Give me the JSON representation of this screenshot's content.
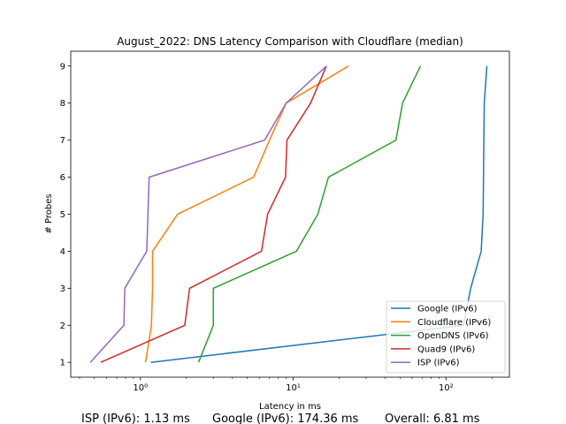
{
  "chart_data": {
    "type": "line",
    "title": "August_2022: DNS Latency Comparison with Cloudflare (median)",
    "xlabel": "Latency in ms",
    "ylabel": "# Probes",
    "xscale": "log",
    "xlim": [
      0.35,
      260
    ],
    "ylim": [
      0.6,
      9.4
    ],
    "xticks": [
      {
        "value": 1,
        "label": "10⁰"
      },
      {
        "value": 10,
        "label": "10¹"
      },
      {
        "value": 100,
        "label": "10²"
      }
    ],
    "yticks": [
      1,
      2,
      3,
      4,
      5,
      6,
      7,
      8,
      9
    ],
    "grid": false,
    "legend_position": "bottom-right",
    "series": [
      {
        "name": "Google (IPv6)",
        "color": "#1f77b4",
        "points": [
          [
            1.17,
            1
          ],
          [
            130,
            2
          ],
          [
            145,
            3
          ],
          [
            170,
            4
          ],
          [
            175,
            5
          ],
          [
            176,
            6
          ],
          [
            177,
            7
          ],
          [
            178,
            8
          ],
          [
            185,
            9
          ]
        ]
      },
      {
        "name": "Cloudflare (IPv6)",
        "color": "#ff7f0e",
        "points": [
          [
            1.08,
            1
          ],
          [
            1.18,
            2
          ],
          [
            1.2,
            3
          ],
          [
            1.2,
            4
          ],
          [
            1.75,
            5
          ],
          [
            5.5,
            6
          ],
          [
            7.0,
            7
          ],
          [
            9.0,
            8
          ],
          [
            23,
            9
          ]
        ]
      },
      {
        "name": "OpenDNS (IPv6)",
        "color": "#2ca02c",
        "points": [
          [
            2.4,
            1
          ],
          [
            3.0,
            2
          ],
          [
            3.0,
            3
          ],
          [
            10.5,
            4
          ],
          [
            14.5,
            5
          ],
          [
            17,
            6
          ],
          [
            47,
            7
          ],
          [
            52,
            8
          ],
          [
            68,
            9
          ]
        ]
      },
      {
        "name": "Quad9 (IPv6)",
        "color": "#d62728",
        "points": [
          [
            0.55,
            1
          ],
          [
            1.95,
            2
          ],
          [
            2.1,
            3
          ],
          [
            6.2,
            4
          ],
          [
            6.8,
            5
          ],
          [
            8.9,
            6
          ],
          [
            9.1,
            7
          ],
          [
            13,
            8
          ],
          [
            16.5,
            9
          ]
        ]
      },
      {
        "name": "ISP (IPv6)",
        "color": "#9467bd",
        "points": [
          [
            0.47,
            1
          ],
          [
            0.78,
            2
          ],
          [
            0.79,
            3
          ],
          [
            1.1,
            4
          ],
          [
            1.12,
            5
          ],
          [
            1.14,
            6
          ],
          [
            6.5,
            7
          ],
          [
            9.0,
            8
          ],
          [
            16.5,
            9
          ]
        ]
      }
    ]
  },
  "footer": {
    "isp": "ISP (IPv6): 1.13 ms",
    "google": "Google (IPv6): 174.36 ms",
    "overall": "Overall: 6.81 ms"
  }
}
